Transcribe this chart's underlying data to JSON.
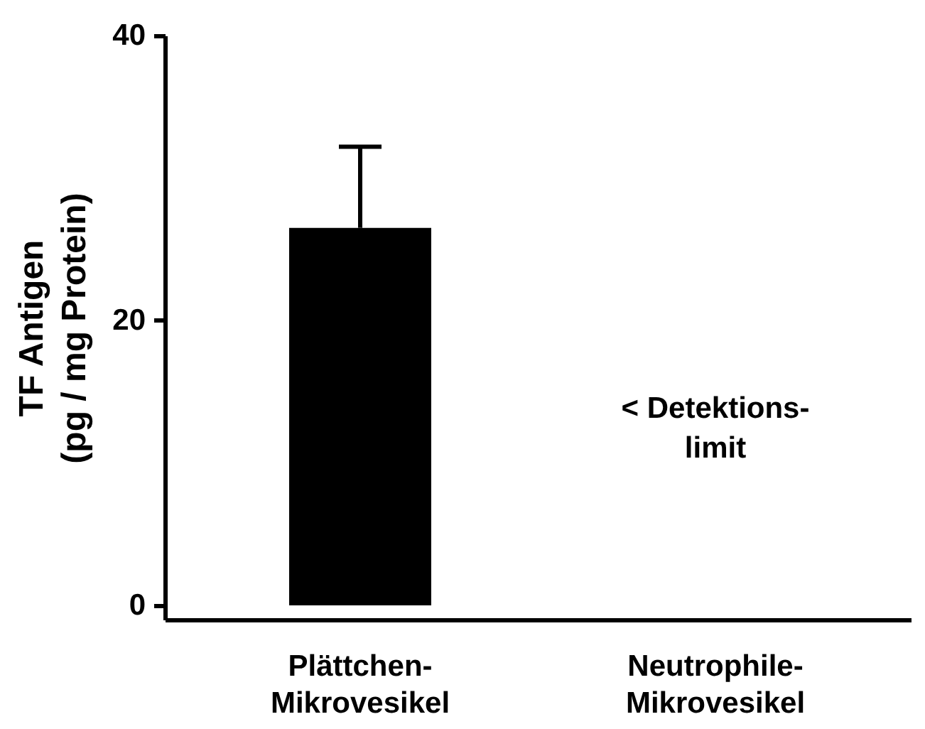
{
  "chart_data": {
    "type": "bar",
    "ylabel": "TF Antigen (pg / mg Protein)",
    "categories": [
      "Plättchen-Mikrovesikel",
      "Neutrophile-Mikrovesikel"
    ],
    "values": [
      26.5,
      null
    ],
    "color": "#000000",
    "errors": [
      [
        26.5,
        32.2
      ],
      null
    ],
    "ylim": [
      -1,
      40
    ],
    "yticks": [
      0,
      20,
      40
    ],
    "grid": false,
    "annotations": [
      "< Detektions-limit"
    ]
  }
}
